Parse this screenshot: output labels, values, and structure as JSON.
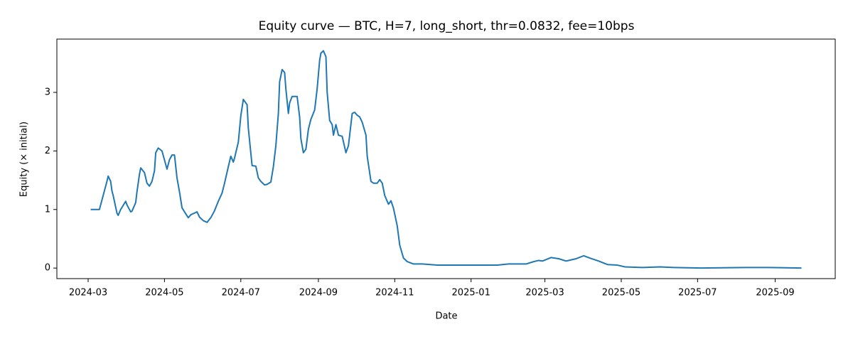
{
  "chart_data": {
    "type": "line",
    "title": "Equity curve — BTC, H=7, long_short, thr=0.0832, fee=10bps",
    "xlabel": "Date",
    "ylabel": "Equity (× initial)",
    "x": [
      "2024-03-03",
      "2024-03-10",
      "2024-03-13",
      "2024-03-16",
      "2024-03-17",
      "2024-03-19",
      "2024-03-20",
      "2024-03-21",
      "2024-03-24",
      "2024-03-25",
      "2024-03-27",
      "2024-03-31",
      "2024-04-01",
      "2024-04-04",
      "2024-04-05",
      "2024-04-08",
      "2024-04-09",
      "2024-04-11",
      "2024-04-12",
      "2024-04-15",
      "2024-04-17",
      "2024-04-19",
      "2024-04-21",
      "2024-04-23",
      "2024-04-24",
      "2024-04-26",
      "2024-04-29",
      "2024-05-03",
      "2024-05-05",
      "2024-05-07",
      "2024-05-09",
      "2024-05-11",
      "2024-05-13",
      "2024-05-15",
      "2024-05-17",
      "2024-05-20",
      "2024-05-22",
      "2024-05-25",
      "2024-05-27",
      "2024-05-29",
      "2024-06-01",
      "2024-06-04",
      "2024-06-07",
      "2024-06-10",
      "2024-06-13",
      "2024-06-16",
      "2024-06-18",
      "2024-06-21",
      "2024-06-23",
      "2024-06-25",
      "2024-06-26",
      "2024-06-29",
      "2024-07-01",
      "2024-07-03",
      "2024-07-06",
      "2024-07-07",
      "2024-07-10",
      "2024-07-13",
      "2024-07-15",
      "2024-07-17",
      "2024-07-20",
      "2024-07-22",
      "2024-07-25",
      "2024-07-27",
      "2024-07-29",
      "2024-07-31",
      "2024-08-01",
      "2024-08-03",
      "2024-08-05",
      "2024-08-06",
      "2024-08-08",
      "2024-08-09",
      "2024-08-11",
      "2024-08-15",
      "2024-08-17",
      "2024-08-18",
      "2024-08-20",
      "2024-08-22",
      "2024-08-24",
      "2024-08-26",
      "2024-08-29",
      "2024-08-31",
      "2024-09-02",
      "2024-09-03",
      "2024-09-05",
      "2024-09-07",
      "2024-09-08",
      "2024-09-10",
      "2024-09-12",
      "2024-09-13",
      "2024-09-15",
      "2024-09-17",
      "2024-09-20",
      "2024-09-23",
      "2024-09-25",
      "2024-09-28",
      "2024-09-30",
      "2024-10-02",
      "2024-10-04",
      "2024-10-06",
      "2024-10-09",
      "2024-10-10",
      "2024-10-13",
      "2024-10-15",
      "2024-10-18",
      "2024-10-20",
      "2024-10-22",
      "2024-10-24",
      "2024-10-27",
      "2024-10-29",
      "2024-10-31",
      "2024-11-03",
      "2024-11-05",
      "2024-11-08",
      "2024-11-11",
      "2024-11-16",
      "2024-11-23",
      "2024-12-05",
      "2025-01-22",
      "2025-01-31",
      "2025-02-14",
      "2025-02-20",
      "2025-02-24",
      "2025-02-27",
      "2025-03-06",
      "2025-03-12",
      "2025-03-18",
      "2025-03-26",
      "2025-04-01",
      "2025-04-06",
      "2025-04-13",
      "2025-04-20",
      "2025-04-28",
      "2025-05-04",
      "2025-05-18",
      "2025-06-01",
      "2025-06-12",
      "2025-07-04",
      "2025-08-08",
      "2025-08-27",
      "2025-09-22"
    ],
    "series": [
      {
        "name": "Equity",
        "color": "#1f77b4",
        "values": [
          1.0,
          1.0,
          1.24,
          1.48,
          1.57,
          1.48,
          1.32,
          1.24,
          0.94,
          0.9,
          1.0,
          1.14,
          1.08,
          0.96,
          0.97,
          1.12,
          1.3,
          1.6,
          1.71,
          1.63,
          1.45,
          1.4,
          1.48,
          1.66,
          1.97,
          2.05,
          2.0,
          1.69,
          1.85,
          1.93,
          1.93,
          1.54,
          1.3,
          1.03,
          0.96,
          0.86,
          0.91,
          0.94,
          0.96,
          0.87,
          0.81,
          0.78,
          0.86,
          0.98,
          1.14,
          1.28,
          1.45,
          1.73,
          1.91,
          1.81,
          1.88,
          2.15,
          2.6,
          2.88,
          2.79,
          2.39,
          1.75,
          1.74,
          1.54,
          1.48,
          1.42,
          1.43,
          1.47,
          1.73,
          2.09,
          2.64,
          3.18,
          3.39,
          3.34,
          3.06,
          2.64,
          2.82,
          2.93,
          2.93,
          2.58,
          2.21,
          1.97,
          2.03,
          2.37,
          2.54,
          2.7,
          3.06,
          3.55,
          3.67,
          3.71,
          3.61,
          3.0,
          2.52,
          2.45,
          2.27,
          2.45,
          2.27,
          2.25,
          1.97,
          2.09,
          2.64,
          2.66,
          2.61,
          2.58,
          2.49,
          2.27,
          1.91,
          1.48,
          1.45,
          1.45,
          1.51,
          1.45,
          1.24,
          1.09,
          1.15,
          1.02,
          0.72,
          0.39,
          0.17,
          0.11,
          0.07,
          0.07,
          0.05,
          0.05,
          0.07,
          0.07,
          0.11,
          0.13,
          0.12,
          0.18,
          0.16,
          0.12,
          0.16,
          0.21,
          0.17,
          0.12,
          0.06,
          0.05,
          0.02,
          0.01,
          0.02,
          0.01,
          0.0,
          0.01,
          0.01,
          0.0
        ]
      }
    ],
    "xlim": [
      "2024-02-05",
      "2025-10-19"
    ],
    "xticks": [
      "2024-03",
      "2024-05",
      "2024-07",
      "2024-09",
      "2024-11",
      "2025-01",
      "2025-03",
      "2025-05",
      "2025-07",
      "2025-09"
    ],
    "ylim": [
      -0.18,
      3.91
    ],
    "yticks": [
      0,
      1,
      2,
      3
    ]
  }
}
